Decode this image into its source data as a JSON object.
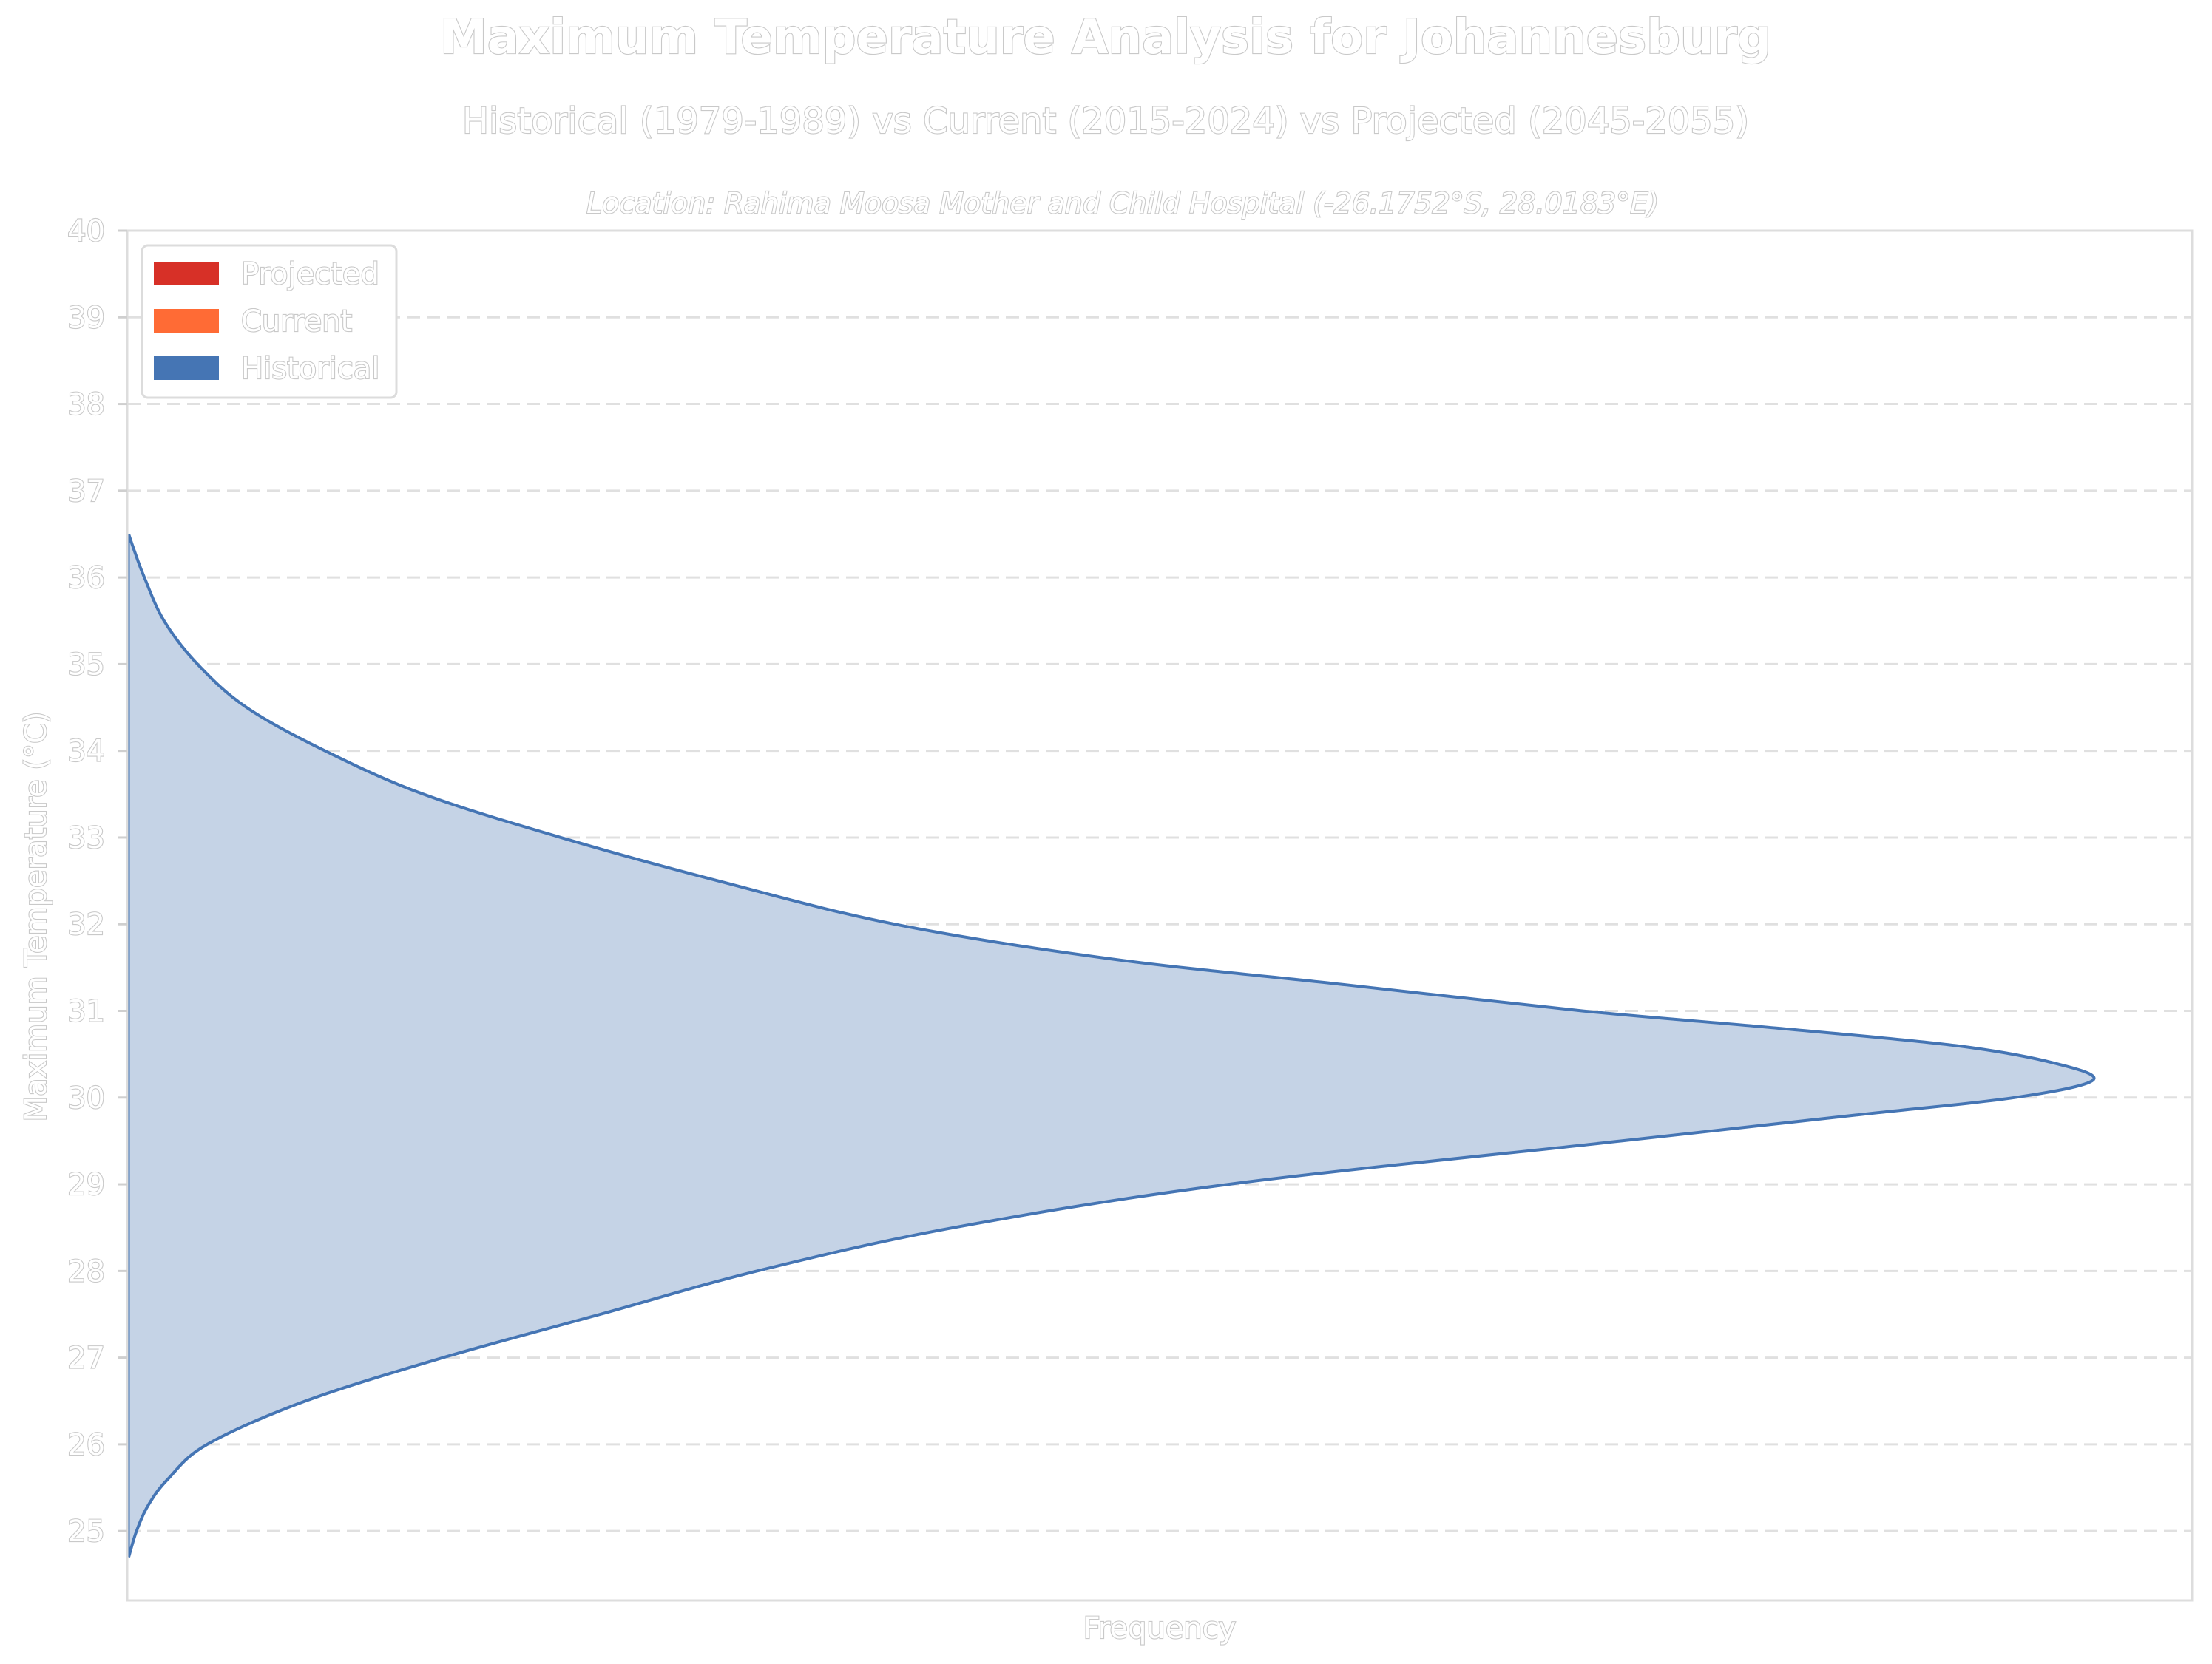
{
  "figure": {
    "title": "Maximum Temperature Analysis for Johannesburg",
    "subtitle": "Historical (1979-1989) vs Current (2015-2024) vs Projected (2045-2055)",
    "location": "Location: Rahima Moosa Mother and Child Hospital (-26.1752°S, 28.0183°E)"
  },
  "chart_data": {
    "type": "area",
    "orientation": "horizontal-density",
    "xlabel": "Frequency",
    "ylabel": "Maximum Temperature (°C)",
    "ylim": [
      24.2,
      40
    ],
    "y_ticks": [
      "25",
      "26",
      "27",
      "28",
      "29",
      "30",
      "31",
      "32",
      "33",
      "34",
      "35",
      "36",
      "37",
      "38",
      "39",
      "40"
    ],
    "grid": true,
    "grid_axis": "y",
    "legend_position": "top-left",
    "legend": [
      {
        "name": "Projected",
        "color": "#d73027"
      },
      {
        "name": "Current",
        "color": "#ff6b35"
      },
      {
        "name": "Historical",
        "color": "#4575b4"
      }
    ],
    "series": [
      {
        "name": "Historical",
        "color": "#4575b4",
        "fill": "#c5d3e6",
        "y": [
          24.7,
          25.0,
          25.3,
          25.6,
          26.0,
          26.5,
          27.0,
          27.5,
          28.0,
          28.5,
          29.0,
          29.5,
          29.8,
          30.0,
          30.2,
          30.4,
          30.6,
          30.8,
          31.0,
          31.3,
          31.6,
          32.0,
          32.5,
          33.0,
          33.5,
          34.0,
          34.5,
          35.0,
          35.5,
          36.0,
          36.3,
          36.5
        ],
        "density": [
          0.0,
          0.004,
          0.01,
          0.02,
          0.04,
          0.09,
          0.16,
          0.24,
          0.32,
          0.42,
          0.56,
          0.76,
          0.88,
          0.96,
          1.0,
          0.98,
          0.93,
          0.84,
          0.74,
          0.62,
          0.5,
          0.39,
          0.3,
          0.22,
          0.15,
          0.1,
          0.06,
          0.035,
          0.018,
          0.008,
          0.003,
          0.0
        ]
      }
    ]
  }
}
